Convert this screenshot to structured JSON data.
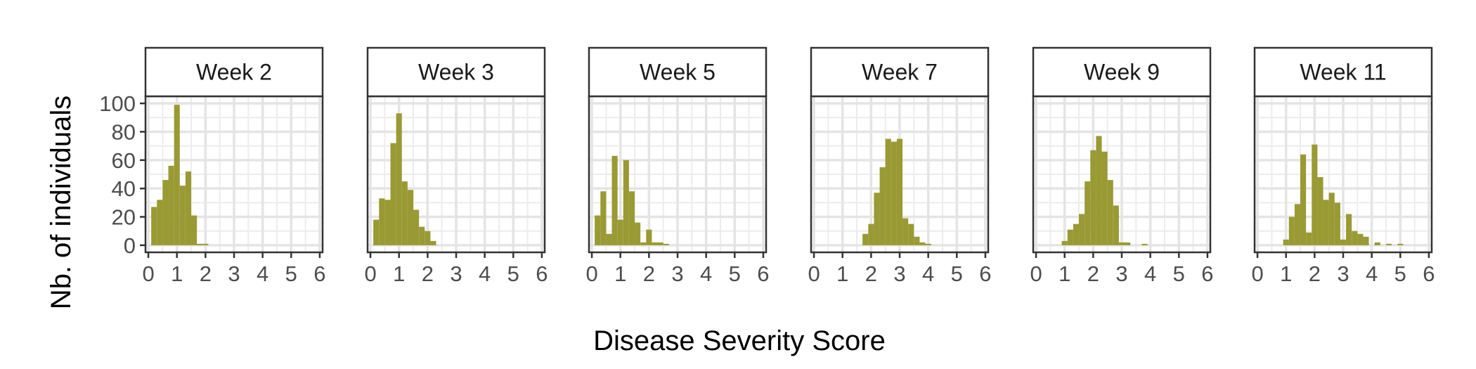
{
  "chart_data": {
    "type": "bar",
    "xlabel": "Disease Severity Score",
    "ylabel": "Nb. of individuals",
    "xlim": [
      -0.1,
      6.1
    ],
    "ylim": [
      -5,
      105
    ],
    "x_ticks": [
      0,
      1,
      2,
      3,
      4,
      5,
      6
    ],
    "y_ticks": [
      0,
      20,
      40,
      60,
      80,
      100
    ],
    "bin_width": 0.2,
    "grid": true,
    "bar_color": "#9a9a35",
    "panels": [
      {
        "label": "Week 2",
        "bins": [
          {
            "x": 0.2,
            "value": 27
          },
          {
            "x": 0.4,
            "value": 32
          },
          {
            "x": 0.6,
            "value": 46
          },
          {
            "x": 0.8,
            "value": 56
          },
          {
            "x": 1.0,
            "value": 99
          },
          {
            "x": 1.2,
            "value": 42
          },
          {
            "x": 1.4,
            "value": 52
          },
          {
            "x": 1.6,
            "value": 21
          },
          {
            "x": 1.8,
            "value": 1
          },
          {
            "x": 2.0,
            "value": 1
          }
        ]
      },
      {
        "label": "Week 3",
        "bins": [
          {
            "x": 0.2,
            "value": 18
          },
          {
            "x": 0.4,
            "value": 33
          },
          {
            "x": 0.6,
            "value": 32
          },
          {
            "x": 0.8,
            "value": 72
          },
          {
            "x": 1.0,
            "value": 93
          },
          {
            "x": 1.2,
            "value": 45
          },
          {
            "x": 1.4,
            "value": 39
          },
          {
            "x": 1.6,
            "value": 25
          },
          {
            "x": 1.8,
            "value": 13
          },
          {
            "x": 2.0,
            "value": 10
          },
          {
            "x": 2.2,
            "value": 3
          }
        ]
      },
      {
        "label": "Week 5",
        "bins": [
          {
            "x": 0.2,
            "value": 21
          },
          {
            "x": 0.4,
            "value": 38
          },
          {
            "x": 0.6,
            "value": 8
          },
          {
            "x": 0.8,
            "value": 63
          },
          {
            "x": 1.0,
            "value": 18
          },
          {
            "x": 1.2,
            "value": 60
          },
          {
            "x": 1.4,
            "value": 38
          },
          {
            "x": 1.6,
            "value": 16
          },
          {
            "x": 1.8,
            "value": 2
          },
          {
            "x": 2.0,
            "value": 11
          },
          {
            "x": 2.2,
            "value": 2
          },
          {
            "x": 2.4,
            "value": 2
          },
          {
            "x": 2.6,
            "value": 1
          }
        ]
      },
      {
        "label": "Week 7",
        "bins": [
          {
            "x": 1.8,
            "value": 8
          },
          {
            "x": 2.0,
            "value": 15
          },
          {
            "x": 2.2,
            "value": 37
          },
          {
            "x": 2.4,
            "value": 55
          },
          {
            "x": 2.6,
            "value": 75
          },
          {
            "x": 2.8,
            "value": 73
          },
          {
            "x": 3.0,
            "value": 75
          },
          {
            "x": 3.2,
            "value": 19
          },
          {
            "x": 3.4,
            "value": 15
          },
          {
            "x": 3.6,
            "value": 6
          },
          {
            "x": 3.8,
            "value": 2
          },
          {
            "x": 4.0,
            "value": 1
          }
        ]
      },
      {
        "label": "Week 9",
        "bins": [
          {
            "x": 1.0,
            "value": 3
          },
          {
            "x": 1.2,
            "value": 11
          },
          {
            "x": 1.4,
            "value": 15
          },
          {
            "x": 1.6,
            "value": 22
          },
          {
            "x": 1.8,
            "value": 45
          },
          {
            "x": 2.0,
            "value": 67
          },
          {
            "x": 2.2,
            "value": 77
          },
          {
            "x": 2.4,
            "value": 66
          },
          {
            "x": 2.6,
            "value": 46
          },
          {
            "x": 2.8,
            "value": 28
          },
          {
            "x": 3.0,
            "value": 2
          },
          {
            "x": 3.2,
            "value": 2
          },
          {
            "x": 3.8,
            "value": 1
          }
        ]
      },
      {
        "label": "Week 11",
        "bins": [
          {
            "x": 1.0,
            "value": 4
          },
          {
            "x": 1.2,
            "value": 20
          },
          {
            "x": 1.4,
            "value": 29
          },
          {
            "x": 1.6,
            "value": 64
          },
          {
            "x": 1.8,
            "value": 9
          },
          {
            "x": 2.0,
            "value": 71
          },
          {
            "x": 2.2,
            "value": 48
          },
          {
            "x": 2.4,
            "value": 32
          },
          {
            "x": 2.6,
            "value": 37
          },
          {
            "x": 2.8,
            "value": 30
          },
          {
            "x": 3.0,
            "value": 4
          },
          {
            "x": 3.2,
            "value": 22
          },
          {
            "x": 3.4,
            "value": 10
          },
          {
            "x": 3.6,
            "value": 8
          },
          {
            "x": 3.8,
            "value": 6
          },
          {
            "x": 4.2,
            "value": 2
          },
          {
            "x": 4.6,
            "value": 1
          },
          {
            "x": 5.0,
            "value": 1
          }
        ]
      }
    ]
  }
}
